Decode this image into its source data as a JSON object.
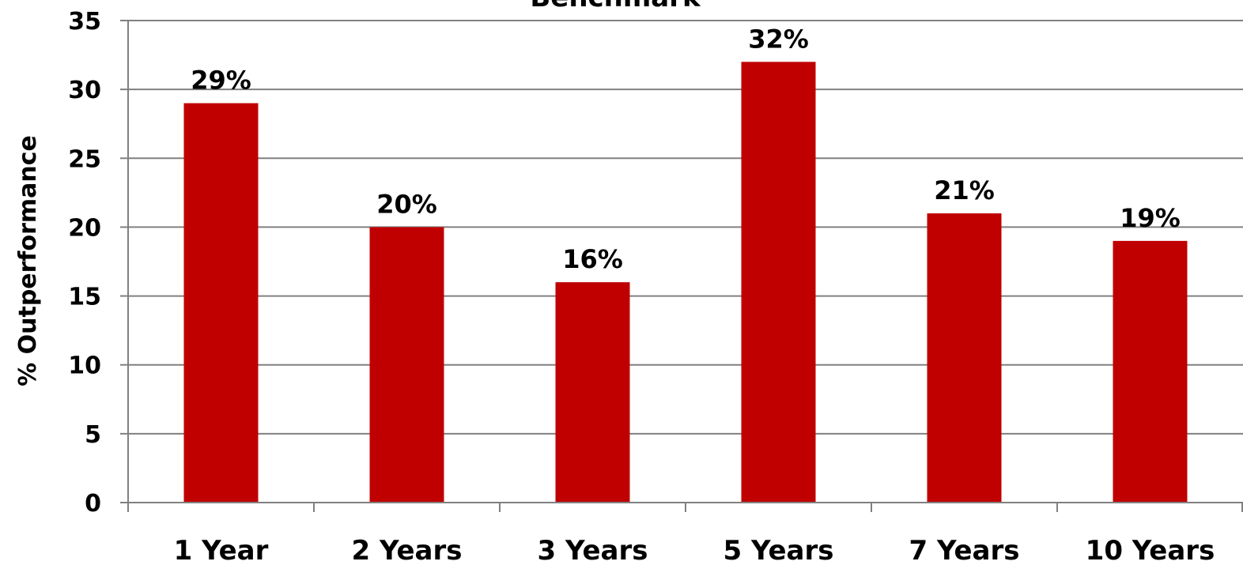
{
  "chart_data": {
    "type": "bar",
    "title": "Benchmark",
    "xlabel": "",
    "ylabel": "% Outperformance",
    "categories": [
      "1 Year",
      "2 Years",
      "3 Years",
      "5 Years",
      "7 Years",
      "10 Years"
    ],
    "values": [
      29,
      20,
      16,
      32,
      21,
      19
    ],
    "data_labels": [
      "29%",
      "20%",
      "16%",
      "32%",
      "21%",
      "19%"
    ],
    "ylim": [
      0,
      35
    ],
    "yticks": [
      0,
      5,
      10,
      15,
      20,
      25,
      30,
      35
    ],
    "ytick_labels": [
      "0",
      "5",
      "10",
      "15",
      "20",
      "25",
      "30",
      "35"
    ],
    "grid": true,
    "legend": "none",
    "bar_color": "#c00000",
    "grid_color": "#808080",
    "axis_color": "#808080"
  }
}
